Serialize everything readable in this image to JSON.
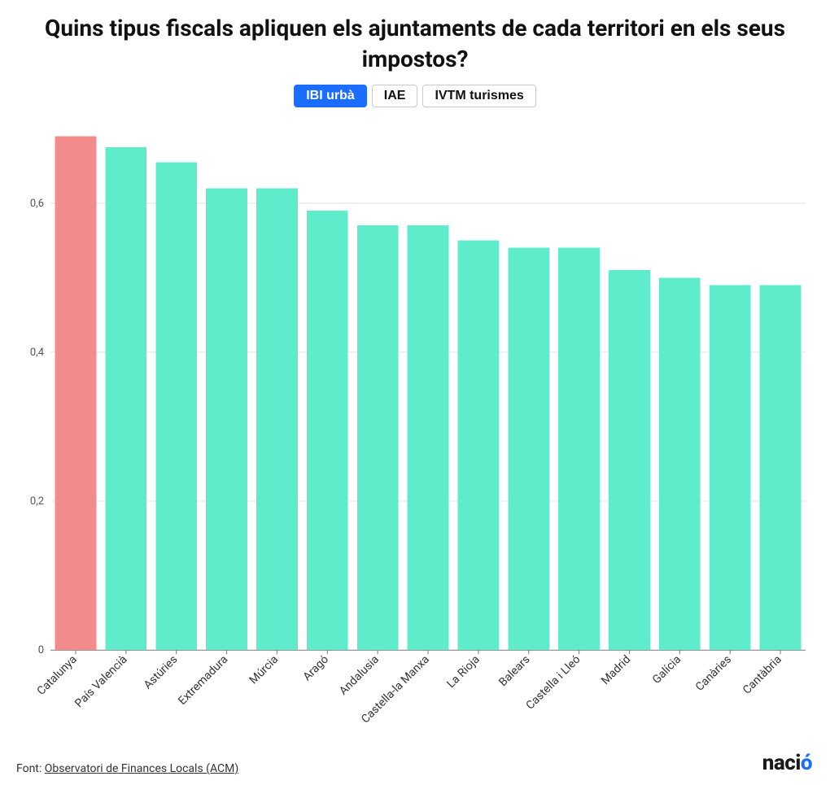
{
  "title": "Quins tipus fiscals apliquen els ajuntaments de cada territori en els seus impostos?",
  "tabs": [
    {
      "label": "IBI urbà",
      "active": true
    },
    {
      "label": "IAE",
      "active": false
    },
    {
      "label": "IVTM turismes",
      "active": false
    }
  ],
  "chart": {
    "type": "bar",
    "categories": [
      "Catalunya",
      "País Valencià",
      "Astúries",
      "Extremadura",
      "Múrcia",
      "Aragó",
      "Andalusia",
      "Castella-la Manxa",
      "La Rioja",
      "Balears",
      "Castella i Lleó",
      "Madrid",
      "Galícia",
      "Canàries",
      "Cantàbria"
    ],
    "values": [
      0.69,
      0.675,
      0.655,
      0.62,
      0.62,
      0.59,
      0.57,
      0.57,
      0.55,
      0.54,
      0.54,
      0.51,
      0.5,
      0.49,
      0.49
    ],
    "bar_colors": [
      "#f28b8b",
      "#5eeccb",
      "#5eeccb",
      "#5eeccb",
      "#5eeccb",
      "#5eeccb",
      "#5eeccb",
      "#5eeccb",
      "#5eeccb",
      "#5eeccb",
      "#5eeccb",
      "#5eeccb",
      "#5eeccb",
      "#5eeccb",
      "#5eeccb"
    ],
    "ylim": [
      0,
      0.7
    ],
    "yticks": [
      0,
      0.2,
      0.4,
      0.6
    ],
    "ytick_labels": [
      "0",
      "0,2",
      "0,4",
      "0,6"
    ],
    "decimal_separator": ",",
    "background_color": "#ffffff",
    "grid_color": "#e4e4e4",
    "axis_color": "#7a7a7a",
    "label_fontsize": 14,
    "ytick_fontsize": 13,
    "bar_gap_ratio": 0.18,
    "xlabel_rotation": -45
  },
  "footer": {
    "prefix": "Font: ",
    "link_text": "Observatori de Finances Locals (ACM)"
  },
  "logo": {
    "text": "nació",
    "accent_char_index": 4,
    "color": "#1a1a1a",
    "accent_color": "#1a6dff"
  }
}
